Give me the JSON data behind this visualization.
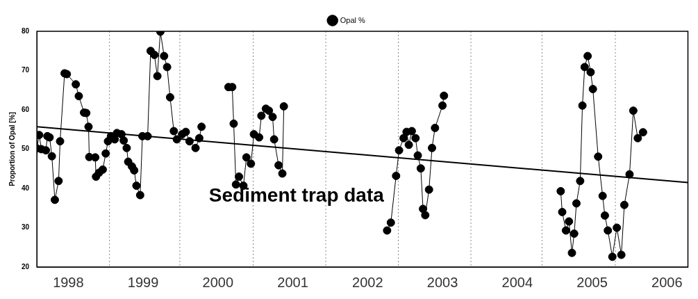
{
  "chart_data": {
    "type": "line",
    "ylabel": "Proportion of Opal [%]",
    "xlim": [
      1997.58,
      2006.28
    ],
    "xticks": [
      {
        "value": 1998,
        "label": "1998"
      },
      {
        "value": 1999,
        "label": "1999"
      },
      {
        "value": 2000,
        "label": "2000"
      },
      {
        "value": 2001,
        "label": "2001"
      },
      {
        "value": 2002,
        "label": "2002"
      },
      {
        "value": 2003,
        "label": "2003"
      },
      {
        "value": 2004,
        "label": "2004"
      },
      {
        "value": 2005,
        "label": "2005"
      },
      {
        "value": 2006,
        "label": "2006"
      }
    ],
    "ylim": [
      20,
      80
    ],
    "yticks": [
      20,
      30,
      40,
      50,
      60,
      70,
      80
    ],
    "grid": false,
    "legend": "top",
    "marker": "circle",
    "line_style": "solid",
    "series": [
      {
        "name": "Opal %",
        "color": "#000000",
        "x": [
          1997.58,
          1997.61,
          1997.64,
          1997.7,
          1997.72,
          1997.75,
          1997.78,
          1997.82,
          1997.87,
          1997.89,
          1997.95,
          1997.98,
          1998.1,
          1998.14,
          1998.21,
          1998.24,
          1998.27,
          1998.28,
          1998.36,
          1998.37,
          1998.41,
          1998.46,
          1998.5,
          1998.53,
          1998.57,
          1998.62,
          1998.65,
          1998.71,
          1998.74,
          1998.78,
          1998.8,
          1998.85,
          1998.88,
          1998.91,
          1998.96,
          1998.99,
          1999.06,
          1999.1,
          1999.15,
          1999.19,
          1999.23,
          1999.28,
          1999.32,
          1999.36,
          1999.41,
          1999.45,
          1999.52,
          1999.57,
          1999.62,
          1999.7,
          1999.75,
          1999.78,
          1999.96,
          2000.14,
          2000.19,
          2000.21,
          2000.24,
          2000.28,
          2000.34,
          2000.38,
          2000.44,
          2000.48,
          2000.55,
          2000.58,
          2000.64,
          2000.68,
          2000.73,
          2000.75,
          2000.81,
          2000.86,
          2000.88,
          2001.57,
          2002.26,
          2002.31,
          2002.38,
          2002.42,
          2002.48,
          2002.52,
          2002.55,
          2002.59,
          2002.64,
          2002.67,
          2002.71,
          2002.74,
          2002.77,
          2002.82,
          2002.86,
          2002.9,
          2003.0,
          2003.02,
          2003.8,
          2004.58,
          2004.6,
          2004.65,
          2004.69,
          2004.73,
          2004.76,
          2004.79,
          2004.84,
          2004.87,
          2004.9,
          2004.94,
          2004.98,
          2005.01,
          2005.08,
          2005.14,
          2005.17,
          2005.21,
          2005.27,
          2005.33,
          2005.39,
          2005.43,
          2005.5,
          2005.55,
          2005.61,
          2005.68
        ],
        "values": [
          50.2,
          53.6,
          50.0,
          49.7,
          53.3,
          53.0,
          48.2,
          37.1,
          41.9,
          52.0,
          69.3,
          69.1,
          66.5,
          63.5,
          59.3,
          59.2,
          55.7,
          48.0,
          47.9,
          43.0,
          44.0,
          44.8,
          48.9,
          52.0,
          53.3,
          52.5,
          54.1,
          53.8,
          52.2,
          50.3,
          46.8,
          45.6,
          44.6,
          40.7,
          38.3,
          53.3,
          53.3,
          75.0,
          74.0,
          68.6,
          79.9,
          73.7,
          70.9,
          63.2,
          54.6,
          52.5,
          53.8,
          54.4,
          52.0,
          50.3,
          52.8,
          55.7,
          null,
          65.8,
          65.8,
          56.5,
          41.0,
          43.0,
          40.7,
          47.9,
          46.3,
          53.8,
          53.0,
          58.5,
          60.3,
          59.8,
          58.2,
          52.5,
          45.9,
          43.8,
          60.9,
          null,
          29.3,
          31.3,
          43.2,
          49.7,
          52.8,
          54.4,
          51.1,
          54.6,
          52.8,
          48.4,
          45.1,
          34.8,
          33.2,
          39.7,
          50.3,
          55.4,
          61.1,
          63.6,
          null,
          39.3,
          34.0,
          29.3,
          31.6,
          23.6,
          28.5,
          36.2,
          41.9,
          61.1,
          70.9,
          73.7,
          69.6,
          65.3,
          48.1,
          38.1,
          33.1,
          29.3,
          22.6,
          30.0,
          23.1,
          35.8,
          43.6,
          59.8,
          52.8,
          54.3
        ]
      },
      {
        "type": "line",
        "color": "#000000",
        "marker": "none",
        "x": [
          1997.58,
          2006.28
        ],
        "values": [
          55.7,
          41.5
        ]
      }
    ],
    "ref_lines": [
      {
        "axis": "x",
        "value": 1998.55,
        "color": "#888888",
        "line_style": "dotted"
      },
      {
        "axis": "x",
        "value": 1999.49,
        "color": "#888888",
        "line_style": "dotted"
      },
      {
        "axis": "x",
        "value": 2000.47,
        "color": "#888888",
        "line_style": "dotted"
      },
      {
        "axis": "x",
        "value": 2001.44,
        "color": "#888888",
        "line_style": "dotted"
      },
      {
        "axis": "x",
        "value": 2002.41,
        "color": "#888888",
        "line_style": "dotted"
      },
      {
        "axis": "x",
        "value": 2003.38,
        "color": "#888888",
        "line_style": "dotted"
      },
      {
        "axis": "x",
        "value": 2004.33,
        "color": "#888888",
        "line_style": "dotted"
      },
      {
        "axis": "x",
        "value": 2005.31,
        "color": "#888888",
        "line_style": "dotted"
      }
    ],
    "annotations": [
      "Sediment trap data"
    ]
  }
}
